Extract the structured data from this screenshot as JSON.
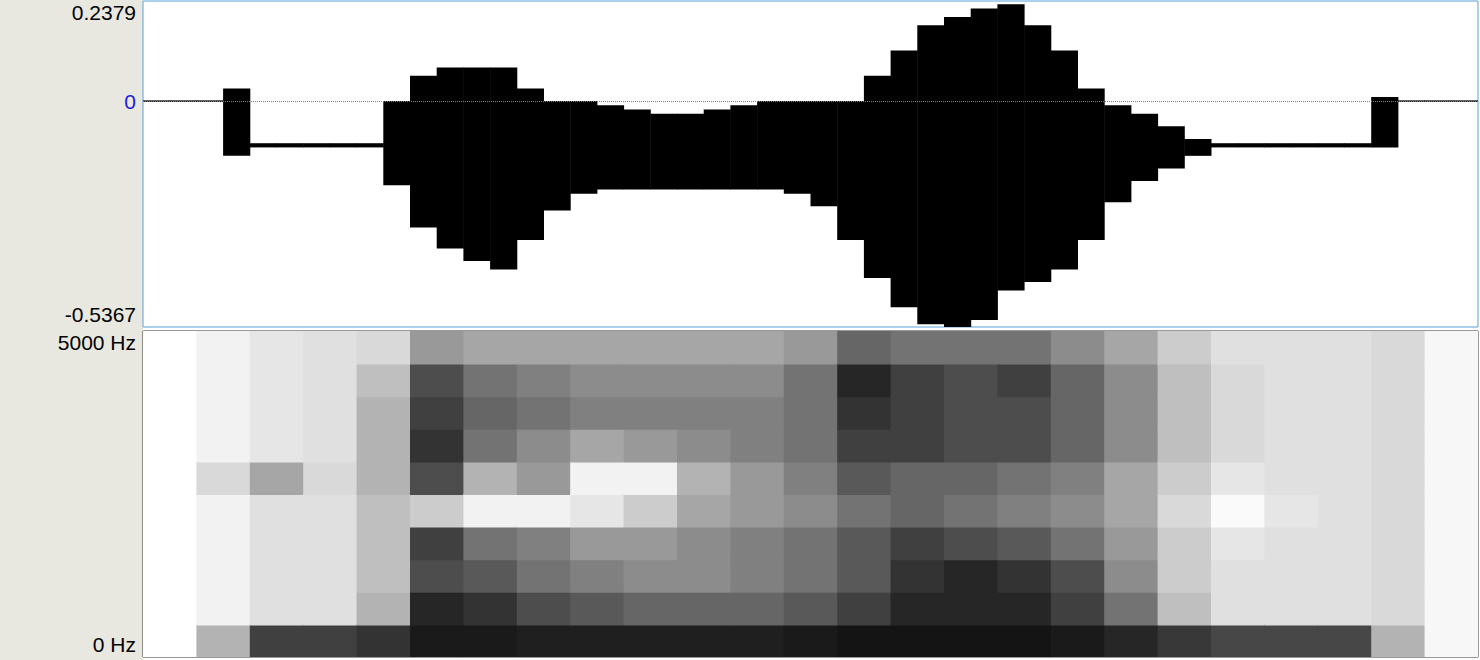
{
  "chart_data": [
    {
      "type": "waveform",
      "x": [
        0.01,
        0.03,
        0.05,
        0.07,
        0.09,
        0.11,
        0.13,
        0.15,
        0.17,
        0.19,
        0.21,
        0.23,
        0.25,
        0.27,
        0.29,
        0.31,
        0.33,
        0.35,
        0.37,
        0.39,
        0.41,
        0.43,
        0.45,
        0.47,
        0.49,
        0.51,
        0.53,
        0.55,
        0.57,
        0.59,
        0.61,
        0.63,
        0.65,
        0.67,
        0.69,
        0.71,
        0.73,
        0.75,
        0.77,
        0.79,
        0.81,
        0.83,
        0.85,
        0.87,
        0.89,
        0.91,
        0.93,
        0.95,
        0.97,
        0.99
      ],
      "max": [
        0,
        0,
        0,
        0.03,
        -0.1,
        -0.1,
        -0.1,
        -0.1,
        -0.1,
        0,
        0.06,
        0.08,
        0.08,
        0.08,
        0.03,
        0,
        0,
        -0.01,
        -0.02,
        -0.03,
        -0.03,
        -0.02,
        -0.01,
        0,
        0,
        0,
        0,
        0.06,
        0.12,
        0.18,
        0.2,
        0.22,
        0.23,
        0.18,
        0.12,
        0.03,
        -0.01,
        -0.03,
        -0.06,
        -0.09,
        -0.1,
        -0.1,
        -0.1,
        -0.1,
        -0.1,
        -0.1,
        0.01,
        0,
        0,
        0
      ],
      "min": [
        0,
        0,
        0,
        -0.13,
        -0.11,
        -0.11,
        -0.11,
        -0.11,
        -0.11,
        -0.2,
        -0.3,
        -0.35,
        -0.38,
        -0.4,
        -0.33,
        -0.26,
        -0.22,
        -0.21,
        -0.21,
        -0.21,
        -0.21,
        -0.21,
        -0.21,
        -0.21,
        -0.22,
        -0.25,
        -0.33,
        -0.42,
        -0.49,
        -0.53,
        -0.54,
        -0.52,
        -0.45,
        -0.43,
        -0.4,
        -0.33,
        -0.24,
        -0.19,
        -0.16,
        -0.13,
        -0.11,
        -0.11,
        -0.11,
        -0.11,
        -0.11,
        -0.11,
        -0.11,
        0,
        0,
        0
      ],
      "xlim": [
        0,
        1
      ],
      "ylim": [
        -0.5367,
        0.2379
      ],
      "yticks": [
        -0.5367,
        0,
        0.2379
      ],
      "tick_labels": "y",
      "color": "#000000"
    },
    {
      "type": "heatmap",
      "x": [
        0.02,
        0.06,
        0.1,
        0.14,
        0.18,
        0.22,
        0.26,
        0.3,
        0.34,
        0.38,
        0.42,
        0.46,
        0.5,
        0.54,
        0.58,
        0.62,
        0.66,
        0.7,
        0.74,
        0.78,
        0.82,
        0.86,
        0.9,
        0.94,
        0.98
      ],
      "bands": [
        250,
        750,
        1250,
        1750,
        2250,
        2750,
        3250,
        3750,
        4250,
        4750
      ],
      "cells": [
        [
          0,
          0,
          0,
          0,
          0,
          0,
          0,
          0,
          0,
          0
        ],
        [
          30,
          5,
          5,
          5,
          5,
          15,
          5,
          5,
          5,
          5
        ],
        [
          75,
          12,
          12,
          12,
          12,
          35,
          10,
          10,
          10,
          10
        ],
        [
          75,
          12,
          12,
          12,
          12,
          15,
          12,
          12,
          12,
          12
        ],
        [
          80,
          30,
          25,
          25,
          25,
          30,
          30,
          30,
          25,
          15
        ],
        [
          90,
          85,
          70,
          75,
          20,
          70,
          80,
          75,
          70,
          40
        ],
        [
          90,
          80,
          65,
          55,
          5,
          30,
          55,
          60,
          55,
          35
        ],
        [
          88,
          70,
          55,
          50,
          5,
          40,
          45,
          55,
          50,
          35
        ],
        [
          88,
          65,
          50,
          40,
          10,
          5,
          35,
          50,
          45,
          35
        ],
        [
          88,
          60,
          45,
          40,
          20,
          5,
          40,
          50,
          45,
          35
        ],
        [
          88,
          60,
          45,
          45,
          35,
          30,
          45,
          50,
          45,
          35
        ],
        [
          88,
          60,
          50,
          50,
          40,
          40,
          50,
          50,
          45,
          35
        ],
        [
          90,
          65,
          55,
          55,
          45,
          50,
          55,
          55,
          55,
          40
        ],
        [
          92,
          75,
          65,
          65,
          55,
          65,
          75,
          80,
          85,
          60
        ],
        [
          92,
          85,
          80,
          75,
          60,
          60,
          75,
          75,
          75,
          55
        ],
        [
          92,
          85,
          85,
          70,
          55,
          60,
          70,
          70,
          70,
          55
        ],
        [
          92,
          85,
          80,
          65,
          50,
          55,
          70,
          70,
          75,
          55
        ],
        [
          90,
          75,
          70,
          55,
          45,
          50,
          60,
          60,
          60,
          45
        ],
        [
          85,
          55,
          45,
          40,
          35,
          35,
          45,
          45,
          45,
          35
        ],
        [
          78,
          25,
          20,
          20,
          15,
          20,
          25,
          25,
          25,
          20
        ],
        [
          72,
          12,
          12,
          10,
          2,
          10,
          15,
          15,
          15,
          12
        ],
        [
          72,
          12,
          12,
          12,
          10,
          12,
          12,
          12,
          12,
          12
        ],
        [
          72,
          12,
          12,
          12,
          12,
          12,
          12,
          12,
          12,
          12
        ],
        [
          30,
          15,
          15,
          15,
          15,
          15,
          15,
          15,
          15,
          15
        ],
        [
          3,
          3,
          3,
          3,
          3,
          3,
          3,
          3,
          3,
          3
        ]
      ],
      "zlim": [
        0,
        100
      ],
      "xlim": [
        0,
        1
      ],
      "ylim": [
        0,
        5000
      ],
      "yticks": [
        {
          "value": 0,
          "label": "0 Hz"
        },
        {
          "value": 5000,
          "label": "5000 Hz"
        }
      ],
      "tick_labels": "y",
      "color": "#000000"
    }
  ]
}
